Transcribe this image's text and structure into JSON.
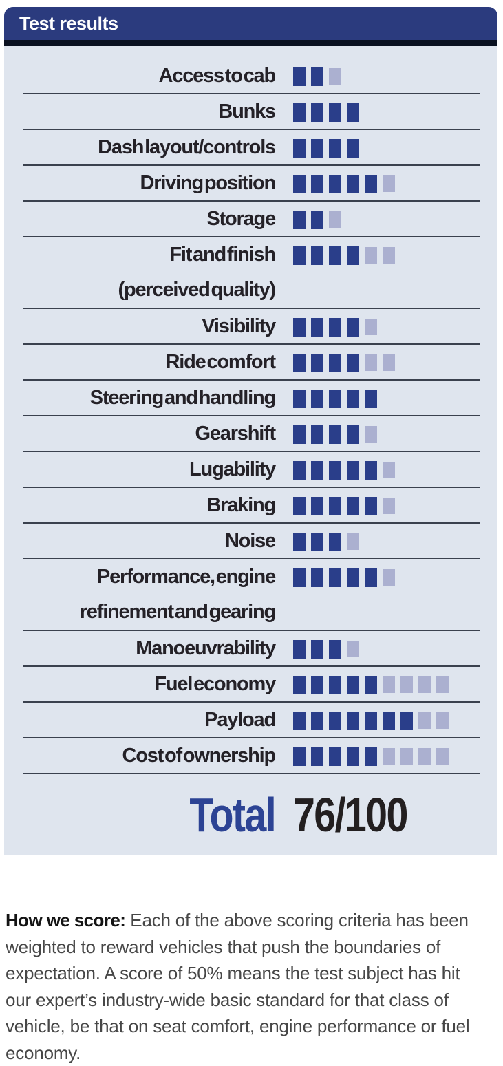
{
  "panel": {
    "title": "Test results",
    "rows": [
      {
        "label_lines": [
          "Access to cab"
        ],
        "filled": 2,
        "max": 3
      },
      {
        "label_lines": [
          "Bunks"
        ],
        "filled": 4,
        "max": 4
      },
      {
        "label_lines": [
          "Dash layout/controls"
        ],
        "filled": 4,
        "max": 4
      },
      {
        "label_lines": [
          "Driving position"
        ],
        "filled": 5,
        "max": 6
      },
      {
        "label_lines": [
          "Storage"
        ],
        "filled": 2,
        "max": 3
      },
      {
        "label_lines": [
          "Fit and finish",
          "(perceived quality)"
        ],
        "filled": 4,
        "max": 6
      },
      {
        "label_lines": [
          "Visibility"
        ],
        "filled": 4,
        "max": 5
      },
      {
        "label_lines": [
          "Ride comfort"
        ],
        "filled": 4,
        "max": 6
      },
      {
        "label_lines": [
          "Steering and handling"
        ],
        "filled": 5,
        "max": 5
      },
      {
        "label_lines": [
          "Gearshift"
        ],
        "filled": 4,
        "max": 5
      },
      {
        "label_lines": [
          "Lugability"
        ],
        "filled": 5,
        "max": 6
      },
      {
        "label_lines": [
          "Braking"
        ],
        "filled": 5,
        "max": 6
      },
      {
        "label_lines": [
          "Noise"
        ],
        "filled": 3,
        "max": 4
      },
      {
        "label_lines": [
          "Performance, engine",
          "refinement and gearing"
        ],
        "filled": 5,
        "max": 6
      },
      {
        "label_lines": [
          "Manoeuvrability"
        ],
        "filled": 3,
        "max": 4
      },
      {
        "label_lines": [
          "Fuel economy"
        ],
        "filled": 5,
        "max": 9
      },
      {
        "label_lines": [
          "Payload"
        ],
        "filled": 7,
        "max": 9
      },
      {
        "label_lines": [
          "Cost of ownership"
        ],
        "filled": 5,
        "max": 9
      }
    ],
    "total_label": "Total",
    "total_value": "76/100"
  },
  "footer": {
    "lead": "How we score:",
    "body": "Each of the above scoring criteria has been weighted to reward vehicles that push the boundaries of expectation. A score of 50% means the test subject has hit our expert’s industry-wide basic standard for that class of vehicle, be that on seat comfort, engine performance or fuel economy."
  },
  "colors": {
    "header_bg": "#2b3b7e",
    "strip_bg": "#0a1120",
    "panel_bg": "#dfe5ee",
    "bar_filled": "#2a3e8a",
    "bar_empty": "#abb0d0",
    "separator": "#3a414e",
    "total_blue": "#2c4394"
  },
  "chart_data": {
    "type": "bar",
    "title": "Test results",
    "categories": [
      "Access to cab",
      "Bunks",
      "Dash layout/controls",
      "Driving position",
      "Storage",
      "Fit and finish (perceived quality)",
      "Visibility",
      "Ride comfort",
      "Steering and handling",
      "Gearshift",
      "Lugability",
      "Braking",
      "Noise",
      "Performance, engine refinement and gearing",
      "Manoeuvrability",
      "Fuel economy",
      "Payload",
      "Cost of ownership"
    ],
    "series": [
      {
        "name": "score",
        "values": [
          2,
          4,
          4,
          5,
          2,
          4,
          4,
          4,
          5,
          4,
          5,
          5,
          3,
          5,
          3,
          5,
          7,
          5
        ]
      },
      {
        "name": "max",
        "values": [
          3,
          4,
          4,
          6,
          3,
          6,
          5,
          6,
          5,
          5,
          6,
          6,
          4,
          6,
          4,
          9,
          9,
          9
        ]
      }
    ],
    "total_score": 76,
    "total_max": 100,
    "legend": "filled squares = points scored, pale squares = points available",
    "orientation": "horizontal",
    "unit": "points (1 square = 1 point)"
  }
}
